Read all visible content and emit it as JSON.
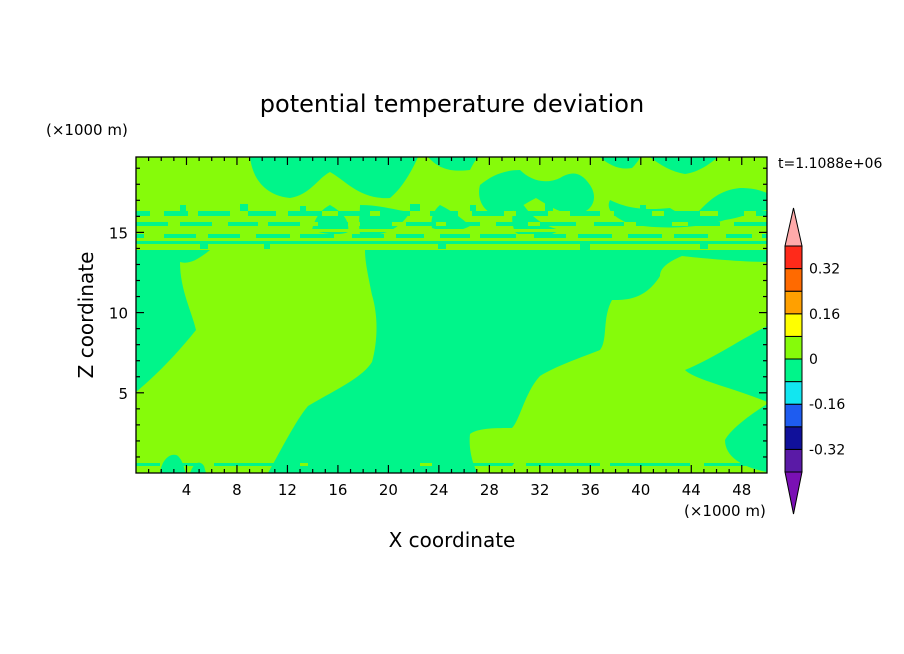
{
  "chart_data": {
    "type": "heatmap",
    "title": "potential temperature deviation",
    "xlabel": "X coordinate",
    "ylabel": "Z coordinate",
    "x_unit": "(×1000 m)",
    "y_unit": "(×1000 m)",
    "time_label": "t=1.1088e+06",
    "xlim": [
      0,
      50
    ],
    "ylim": [
      0,
      19.7
    ],
    "x_ticks": [
      4,
      8,
      12,
      16,
      20,
      24,
      28,
      32,
      36,
      40,
      44,
      48
    ],
    "y_ticks": [
      5,
      10,
      15
    ],
    "colorbar": {
      "levels": [
        -0.4,
        -0.32,
        -0.24,
        -0.16,
        -0.08,
        0,
        0.08,
        0.16,
        0.24,
        0.32,
        0.4
      ],
      "colors": [
        "#5a1aa6",
        "#10109a",
        "#1e5cf0",
        "#12e6f0",
        "#00f58a",
        "#86fb0a",
        "#ffff00",
        "#ffa000",
        "#ff6a00",
        "#ff2a1a"
      ],
      "under_color": "#7a10b4",
      "over_color": "#ffaaaa",
      "tick_labels": [
        "0.32",
        "0.16",
        "0",
        "-0.16",
        "-0.32"
      ],
      "tick_values": [
        0.32,
        0.16,
        0,
        -0.16,
        -0.32
      ]
    }
  }
}
